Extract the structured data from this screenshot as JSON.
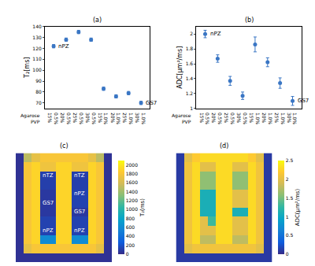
{
  "chart_data": [
    {
      "type": "scatter",
      "title": "(a)",
      "y_label": "T₂[ms]",
      "row_labels": [
        "Agarose",
        "PVP"
      ],
      "agarose": [
        "0.5%",
        "0.5%",
        "0.5%",
        "0.5%",
        "1.0%",
        "1.0%",
        "1.0%",
        "1.0%"
      ],
      "pvp": [
        "15%",
        "20%",
        "25%",
        "30%",
        "15%",
        "20%",
        "25%",
        "30%"
      ],
      "values": [
        122,
        128,
        135,
        128,
        83,
        76,
        79,
        70
      ],
      "errors": [
        1.5,
        1.5,
        1.5,
        1.5,
        1.5,
        1.5,
        1.5,
        1.5
      ],
      "point_labels": [
        {
          "index": 0,
          "text": "nPZ"
        },
        {
          "index": 7,
          "text": "GS7"
        }
      ],
      "ylim": [
        65,
        140
      ],
      "yticks": [
        70,
        80,
        90,
        100,
        110,
        120,
        130,
        140
      ],
      "color": "#3a76c4",
      "marker": "circle",
      "grid": false
    },
    {
      "type": "scatter",
      "title": "(b)",
      "y_label": "ADC[µm²/ms]",
      "row_labels": [
        "Agarose",
        "PVP"
      ],
      "agarose": [
        "0.5%",
        "0.5%",
        "0.5%",
        "0.5%",
        "1.0%",
        "1.0%",
        "1.0%",
        "1.0%"
      ],
      "pvp": [
        "15%",
        "20%",
        "25%",
        "30%",
        "15%",
        "20%",
        "25%",
        "30%"
      ],
      "values": [
        2.0,
        1.67,
        1.37,
        1.17,
        1.86,
        1.62,
        1.34,
        1.1
      ],
      "errors": [
        0.05,
        0.05,
        0.06,
        0.05,
        0.1,
        0.06,
        0.07,
        0.06
      ],
      "point_labels": [
        {
          "index": 0,
          "text": "nPZ"
        },
        {
          "index": 7,
          "text": "GS7"
        }
      ],
      "ylim": [
        1,
        2.1
      ],
      "yticks": [
        1,
        1.2,
        1.4,
        1.6,
        1.8,
        2
      ],
      "color": "#3a76c4",
      "marker": "circle",
      "grid": false
    },
    {
      "type": "heatmap",
      "title": "(c)",
      "colorbar_title": "T₂(ms)",
      "zlim": [
        0,
        2100
      ],
      "zticks": [
        0,
        200,
        400,
        600,
        800,
        1000,
        1200,
        1400,
        1600,
        1800,
        2000
      ],
      "labels_left": [
        "nTZ",
        "GS7",
        "nPZ"
      ],
      "labels_right": [
        "nTZ",
        "nPZ",
        "GS7",
        "nPZ"
      ],
      "tick_labels": false,
      "z": [
        [
          40,
          1500,
          1700,
          1800,
          1800,
          1800,
          1800,
          1800,
          1800,
          1700,
          1500,
          40
        ],
        [
          40,
          1800,
          1900,
          1750,
          1750,
          1900,
          1900,
          1750,
          1750,
          1900,
          1800,
          40
        ],
        [
          40,
          1800,
          1900,
          110,
          110,
          1900,
          1900,
          110,
          110,
          1900,
          1800,
          40
        ],
        [
          40,
          1800,
          1900,
          110,
          110,
          1900,
          1900,
          110,
          110,
          1900,
          1800,
          40
        ],
        [
          40,
          1800,
          1900,
          75,
          75,
          1900,
          1900,
          125,
          125,
          1900,
          1800,
          40
        ],
        [
          40,
          1800,
          1900,
          75,
          75,
          1900,
          1900,
          125,
          125,
          1900,
          1800,
          40
        ],
        [
          40,
          1800,
          1900,
          75,
          75,
          1900,
          1900,
          75,
          75,
          1900,
          1800,
          40
        ],
        [
          40,
          1800,
          1900,
          125,
          125,
          1900,
          1900,
          125,
          125,
          1900,
          1800,
          40
        ],
        [
          40,
          1800,
          1900,
          125,
          125,
          1900,
          1900,
          125,
          125,
          1900,
          1800,
          40
        ],
        [
          40,
          1800,
          1900,
          600,
          600,
          1900,
          1900,
          600,
          600,
          1900,
          1800,
          40
        ],
        [
          40,
          1700,
          1800,
          1800,
          1800,
          1800,
          1800,
          1800,
          1800,
          1800,
          1700,
          40
        ],
        [
          40,
          40,
          40,
          40,
          40,
          40,
          40,
          40,
          40,
          40,
          40,
          40
        ]
      ]
    },
    {
      "type": "heatmap",
      "title": "(d)",
      "colorbar_title": "ADC(µm²/ms)",
      "zlim": [
        0,
        2.5
      ],
      "zticks": [
        0,
        0.5,
        1,
        1.5,
        2,
        2.5
      ],
      "labels_left": [],
      "labels_right": [],
      "tick_labels": false,
      "z": [
        [
          0.1,
          2.0,
          2.2,
          2.3,
          2.3,
          2.3,
          2.3,
          2.3,
          2.3,
          2.2,
          2.0,
          0.1
        ],
        [
          0.1,
          2.1,
          2.3,
          2.0,
          2.0,
          2.3,
          2.3,
          2.0,
          2.0,
          2.3,
          2.1,
          0.1
        ],
        [
          0.1,
          2.1,
          2.3,
          1.6,
          1.6,
          2.3,
          2.3,
          1.6,
          1.6,
          2.3,
          2.1,
          0.1
        ],
        [
          0.1,
          2.1,
          2.3,
          1.6,
          1.6,
          2.3,
          2.3,
          1.6,
          1.6,
          2.3,
          2.1,
          0.1
        ],
        [
          0.1,
          2.1,
          2.3,
          1.1,
          1.1,
          2.3,
          2.3,
          2.0,
          2.0,
          2.3,
          2.1,
          0.1
        ],
        [
          0.1,
          2.1,
          2.3,
          1.1,
          1.1,
          2.3,
          2.3,
          2.0,
          2.0,
          2.3,
          2.1,
          0.1
        ],
        [
          0.1,
          2.1,
          2.3,
          1.1,
          1.1,
          2.3,
          2.3,
          1.1,
          1.1,
          2.3,
          2.1,
          0.1
        ],
        [
          0.1,
          2.1,
          2.3,
          2.0,
          1.3,
          2.3,
          2.3,
          2.0,
          2.0,
          2.3,
          2.1,
          0.1
        ],
        [
          0.1,
          2.1,
          2.3,
          2.0,
          2.0,
          2.3,
          2.3,
          2.0,
          2.0,
          2.3,
          2.1,
          0.1
        ],
        [
          0.1,
          2.1,
          2.3,
          1.8,
          1.8,
          2.3,
          2.3,
          1.8,
          1.8,
          2.3,
          2.1,
          0.1
        ],
        [
          0.1,
          2.0,
          2.1,
          2.1,
          2.1,
          2.1,
          2.1,
          2.1,
          2.1,
          2.1,
          2.0,
          0.1
        ],
        [
          0.1,
          0.1,
          0.1,
          0.1,
          0.1,
          0.1,
          0.1,
          0.1,
          0.1,
          0.1,
          0.1,
          0.1
        ]
      ]
    }
  ]
}
